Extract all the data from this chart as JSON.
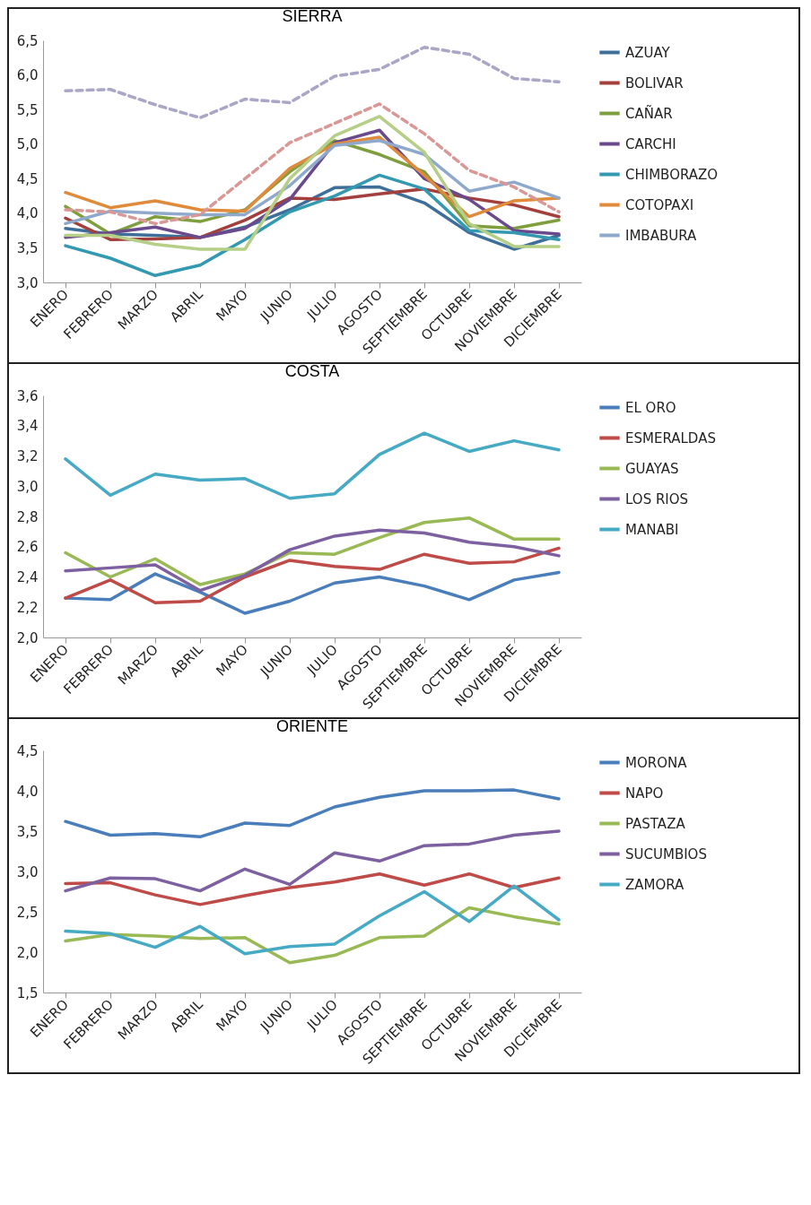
{
  "chart_data": [
    {
      "type": "line",
      "title": "SIERRA",
      "categories": [
        "ENERO",
        "FEBRERO",
        "MARZO",
        "ABRIL",
        "MAYO",
        "JUNIO",
        "JULIO",
        "AGOSTO",
        "SEPTIEMBRE",
        "OCTUBRE",
        "NOVIEMBRE",
        "DICIEMBRE"
      ],
      "ylim": [
        3.0,
        6.5
      ],
      "yticks": [
        {
          "value": 3.0,
          "label": "3,0"
        },
        {
          "value": 3.5,
          "label": "3,5"
        },
        {
          "value": 4.0,
          "label": "4,0"
        },
        {
          "value": 4.5,
          "label": "4,5"
        },
        {
          "value": 5.0,
          "label": "5,0"
        },
        {
          "value": 5.5,
          "label": "5,5"
        },
        {
          "value": 6.0,
          "label": "6,0"
        },
        {
          "value": 6.5,
          "label": "6,5"
        }
      ],
      "legend": "right",
      "series": [
        {
          "name": "AZUAY",
          "color": "#3e6e9a",
          "line_style": "solid",
          "values": [
            3.78,
            3.7,
            3.68,
            3.65,
            3.8,
            4.05,
            4.37,
            4.38,
            4.15,
            3.72,
            3.48,
            3.68
          ]
        },
        {
          "name": "BOLIVAR",
          "color": "#a3403d",
          "line_style": "solid",
          "values": [
            3.93,
            3.62,
            3.63,
            3.65,
            3.9,
            4.22,
            4.2,
            4.28,
            4.35,
            4.22,
            4.12,
            3.95
          ]
        },
        {
          "name": "CAÑAR",
          "color": "#7f9f3f",
          "line_style": "solid",
          "values": [
            4.1,
            3.7,
            3.95,
            3.88,
            4.05,
            4.6,
            5.05,
            4.85,
            4.6,
            3.82,
            3.78,
            3.9
          ]
        },
        {
          "name": "CARCHI",
          "color": "#6a4a8c",
          "line_style": "solid",
          "values": [
            3.65,
            3.72,
            3.8,
            3.65,
            3.78,
            4.2,
            5.02,
            5.2,
            4.5,
            4.2,
            3.75,
            3.7
          ]
        },
        {
          "name": "CHIMBORAZO",
          "color": "#3399b0",
          "line_style": "solid",
          "values": [
            3.53,
            3.35,
            3.1,
            3.25,
            3.62,
            4.02,
            4.25,
            4.55,
            4.35,
            3.75,
            3.72,
            3.62
          ]
        },
        {
          "name": "COTOPAXI",
          "color": "#e08a3c",
          "line_style": "solid",
          "values": [
            4.3,
            4.08,
            4.18,
            4.05,
            4.03,
            4.65,
            5.0,
            5.1,
            4.55,
            3.95,
            4.18,
            4.22
          ]
        },
        {
          "name": "IMBABURA",
          "color": "#8fa9cc",
          "line_style": "solid",
          "values": [
            3.85,
            4.03,
            4.0,
            3.98,
            3.98,
            4.4,
            4.98,
            5.05,
            4.85,
            4.32,
            4.45,
            4.22
          ]
        },
        {
          "color": "#b5cf87",
          "line_style": "solid",
          "values": [
            3.68,
            3.68,
            3.55,
            3.48,
            3.48,
            4.5,
            5.12,
            5.4,
            4.88,
            3.85,
            3.52,
            3.52
          ]
        },
        {
          "color": "#d99795",
          "line_style": "dashed",
          "values": [
            4.05,
            4.02,
            3.85,
            3.98,
            4.5,
            5.02,
            5.3,
            5.58,
            5.15,
            4.62,
            4.38,
            4.02
          ]
        },
        {
          "color": "#a9a6c6",
          "line_style": "dashed",
          "values": [
            5.77,
            5.79,
            5.57,
            5.38,
            5.65,
            5.6,
            5.98,
            6.08,
            6.4,
            6.3,
            5.95,
            5.9
          ]
        }
      ]
    },
    {
      "type": "line",
      "title": "COSTA",
      "categories": [
        "ENERO",
        "FEBRERO",
        "MARZO",
        "ABRIL",
        "MAYO",
        "JUNIO",
        "JULIO",
        "AGOSTO",
        "SEPTIEMBRE",
        "OCTUBRE",
        "NOVIEMBRE",
        "DICIEMBRE"
      ],
      "ylim": [
        2.0,
        3.6
      ],
      "yticks": [
        {
          "value": 2.0,
          "label": "2,0"
        },
        {
          "value": 2.2,
          "label": "2,2"
        },
        {
          "value": 2.4,
          "label": "2,4"
        },
        {
          "value": 2.6,
          "label": "2,6"
        },
        {
          "value": 2.8,
          "label": "2,8"
        },
        {
          "value": 3.0,
          "label": "3,0"
        },
        {
          "value": 3.2,
          "label": "3,2"
        },
        {
          "value": 3.4,
          "label": "3,4"
        },
        {
          "value": 3.6,
          "label": "3,6"
        }
      ],
      "legend": "right",
      "series": [
        {
          "name": "EL ORO",
          "color": "#4a7ebb",
          "line_style": "solid",
          "values": [
            2.26,
            2.25,
            2.42,
            2.3,
            2.16,
            2.24,
            2.36,
            2.4,
            2.34,
            2.25,
            2.38,
            2.43
          ]
        },
        {
          "name": "ESMERALDAS",
          "color": "#be4b48",
          "line_style": "solid",
          "values": [
            2.26,
            2.38,
            2.23,
            2.24,
            2.4,
            2.51,
            2.47,
            2.45,
            2.55,
            2.49,
            2.5,
            2.59
          ]
        },
        {
          "name": "GUAYAS",
          "color": "#98b954",
          "line_style": "solid",
          "values": [
            2.56,
            2.4,
            2.52,
            2.35,
            2.42,
            2.56,
            2.55,
            2.66,
            2.76,
            2.79,
            2.65,
            2.65
          ]
        },
        {
          "name": "LOS RIOS",
          "color": "#7d60a0",
          "line_style": "solid",
          "values": [
            2.44,
            2.46,
            2.48,
            2.31,
            2.41,
            2.58,
            2.67,
            2.71,
            2.69,
            2.63,
            2.6,
            2.54
          ]
        },
        {
          "name": "MANABI",
          "color": "#46aac5",
          "line_style": "solid",
          "values": [
            3.18,
            2.94,
            3.08,
            3.04,
            3.05,
            2.92,
            2.95,
            3.21,
            3.35,
            3.23,
            3.3,
            3.24
          ]
        }
      ]
    },
    {
      "type": "line",
      "title": "ORIENTE",
      "categories": [
        "ENERO",
        "FEBRERO",
        "MARZO",
        "ABRIL",
        "MAYO",
        "JUNIO",
        "JULIO",
        "AGOSTO",
        "SEPTIEMBRE",
        "OCTUBRE",
        "NOVIEMBRE",
        "DICIEMBRE"
      ],
      "ylim": [
        1.5,
        4.5
      ],
      "yticks": [
        {
          "value": 1.5,
          "label": "1,5"
        },
        {
          "value": 2.0,
          "label": "2,0"
        },
        {
          "value": 2.5,
          "label": "2,5"
        },
        {
          "value": 3.0,
          "label": "3,0"
        },
        {
          "value": 3.5,
          "label": "3,5"
        },
        {
          "value": 4.0,
          "label": "4,0"
        },
        {
          "value": 4.5,
          "label": "4,5"
        }
      ],
      "legend": "right",
      "series": [
        {
          "name": "MORONA",
          "color": "#4a7ebb",
          "line_style": "solid",
          "values": [
            3.62,
            3.45,
            3.47,
            3.43,
            3.6,
            3.57,
            3.8,
            3.92,
            4.0,
            4.0,
            4.01,
            3.9
          ]
        },
        {
          "name": "NAPO",
          "color": "#be4b48",
          "line_style": "solid",
          "values": [
            2.85,
            2.86,
            2.71,
            2.59,
            2.7,
            2.8,
            2.87,
            2.97,
            2.83,
            2.97,
            2.8,
            2.92
          ]
        },
        {
          "name": "PASTAZA",
          "color": "#98b954",
          "line_style": "solid",
          "values": [
            2.14,
            2.22,
            2.2,
            2.17,
            2.18,
            1.87,
            1.96,
            2.18,
            2.2,
            2.55,
            2.44,
            2.35
          ]
        },
        {
          "name": "SUCUMBIOS",
          "color": "#7d60a0",
          "line_style": "solid",
          "values": [
            2.76,
            2.92,
            2.91,
            2.76,
            3.03,
            2.84,
            3.23,
            3.13,
            3.32,
            3.34,
            3.45,
            3.5
          ]
        },
        {
          "name": "ZAMORA",
          "color": "#46aac5",
          "line_style": "solid",
          "values": [
            2.26,
            2.23,
            2.06,
            2.32,
            1.98,
            2.07,
            2.1,
            2.45,
            2.75,
            2.38,
            2.82,
            2.4
          ]
        }
      ]
    }
  ]
}
